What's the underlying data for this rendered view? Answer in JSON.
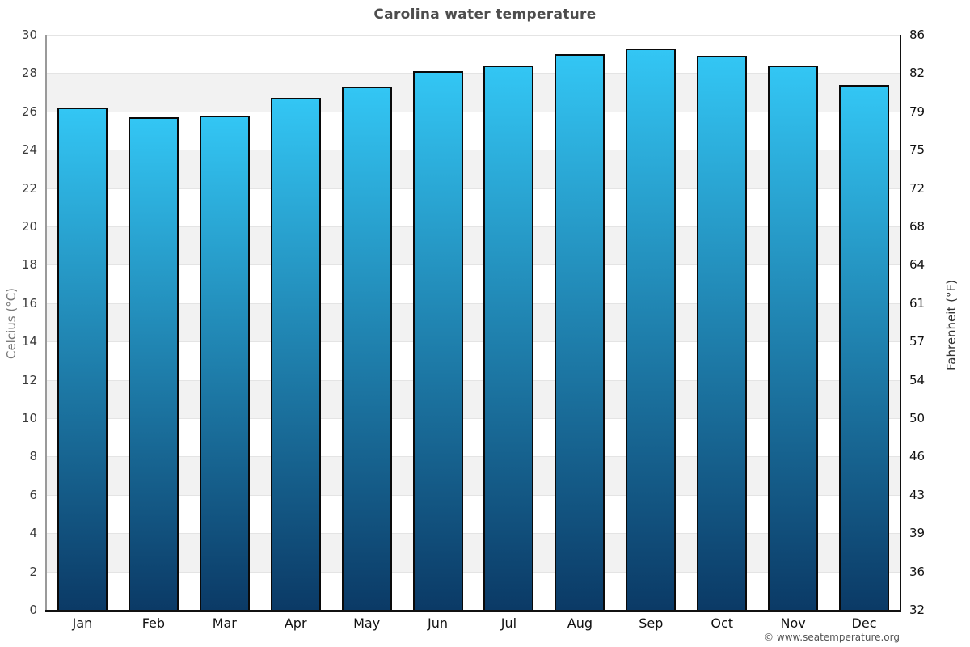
{
  "chart_data": {
    "type": "bar",
    "title": "Carolina water temperature",
    "categories": [
      "Jan",
      "Feb",
      "Mar",
      "Apr",
      "May",
      "Jun",
      "Jul",
      "Aug",
      "Sep",
      "Oct",
      "Nov",
      "Dec"
    ],
    "values": [
      26.2,
      25.7,
      25.8,
      26.7,
      27.3,
      28.1,
      28.4,
      29.0,
      29.3,
      28.9,
      28.4,
      27.4
    ],
    "unit": "°C",
    "ylabel_left": "Celcius (°C)",
    "ylabel_right": "Fahrenheit (°F)",
    "xlabel": "",
    "y_left_ticks": [
      30,
      28,
      26,
      24,
      22,
      20,
      18,
      16,
      14,
      12,
      10,
      8,
      6,
      4,
      2,
      0
    ],
    "y_right_ticks": [
      86,
      82,
      79,
      75,
      72,
      68,
      64,
      61,
      57,
      54,
      50,
      46,
      43,
      39,
      36,
      32
    ],
    "ylim": [
      0,
      30
    ],
    "grid": "horizontal-bands-alternating",
    "legend": "none",
    "colors": {
      "bar_gradient_top": "#33C6F4",
      "bar_gradient_bottom": "#0B3A66",
      "bar_border": "#0A0A0A",
      "band_stripe": "#F2F2F2",
      "band_white": "#FFFFFF",
      "gridline": "#E4E4E4",
      "left_axis_line": "#9A9A9A",
      "right_axis_line": "#111111",
      "bottom_axis_line": "#111111",
      "title_color": "#4D4D4D",
      "left_tick_label_color": "#3A3A3A",
      "right_tick_label_color": "#111111",
      "left_axis_title_color": "#777777",
      "right_axis_title_color": "#333333",
      "footer_color": "#555555"
    }
  },
  "footer": {
    "copyright": "© www.seatemperature.org"
  }
}
